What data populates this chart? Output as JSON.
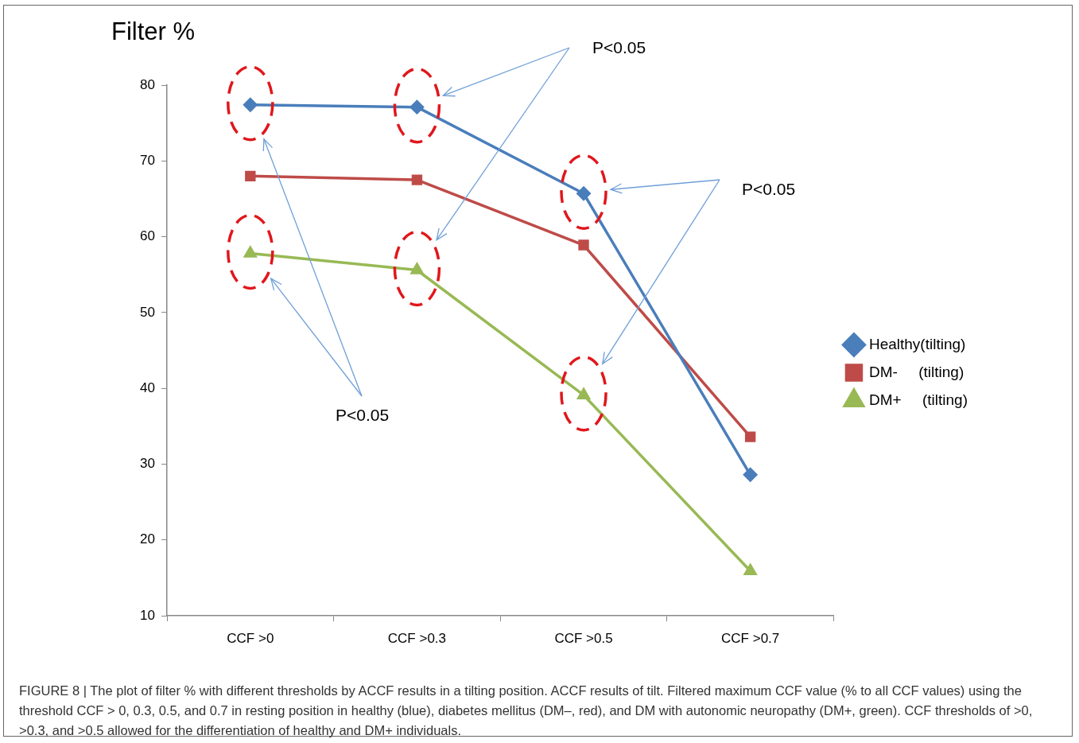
{
  "chart_data": {
    "type": "line",
    "ylabel": "Filter %",
    "categories": [
      "CCF >0",
      "CCF >0.3",
      "CCF >0.5",
      "CCF >0.7"
    ],
    "series": [
      {
        "name": "Healthy(tilting)",
        "color": "#4a7ebb",
        "marker": "diamond",
        "values": [
          77.4,
          77.1,
          65.7,
          28.6
        ]
      },
      {
        "name": "DM-     (tilting)",
        "color": "#be4b48",
        "marker": "square",
        "values": [
          68.0,
          67.5,
          58.9,
          33.6
        ]
      },
      {
        "name": "DM+     (tilting)",
        "color": "#98b954",
        "marker": "triangle",
        "values": [
          57.8,
          55.6,
          39.1,
          15.9
        ]
      }
    ],
    "ylim": [
      10,
      80
    ],
    "yticks": [
      10,
      20,
      30,
      40,
      50,
      60,
      70,
      80
    ],
    "grid": false,
    "legend": "right",
    "line_style": "solid",
    "annotations": [
      "P<0.05",
      "P<0.05",
      "P<0.05",
      "FIGURE 8 | The plot of filter % with different thresholds by ACCF results in a tilting position. ACCF results of tilt. Filtered maximum CCF value (% to all CCF values) using the threshold CCF > 0, 0.3, 0.5, and 0.7 in resting position in healthy (blue), diabetes mellitus (DM–, red), and DM with autonomic neuropathy (DM+, green). CCF thresholds of >0, >0.3, and >0.5 allowed for the differentiation of healthy and DM+ individuals."
    ]
  }
}
